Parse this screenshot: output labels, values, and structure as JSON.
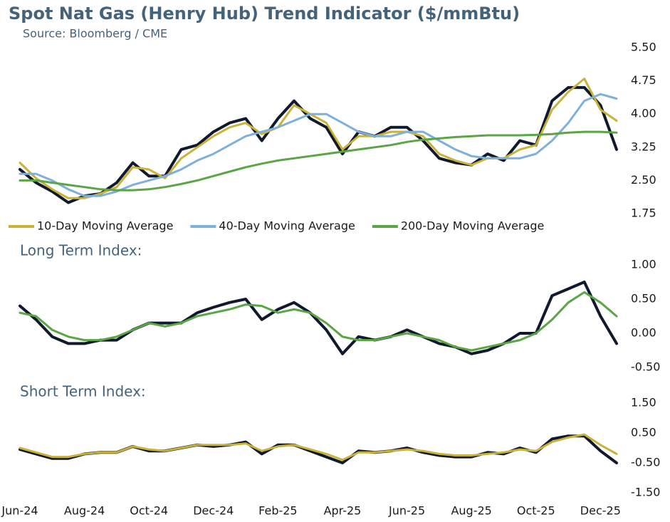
{
  "chart_data": [
    {
      "type": "line",
      "title": "Spot Nat Gas (Henry Hub) Trend Indicator ($/mmBtu)",
      "subtitle": "Source: Bloomberg / CME",
      "ylim": [
        1.75,
        5.5
      ],
      "yticks": [
        {
          "value": 1.75,
          "label": "1.75"
        },
        {
          "value": 2.5,
          "label": "2.50"
        },
        {
          "value": 3.25,
          "label": "3.25"
        },
        {
          "value": 4,
          "label": "4.00"
        },
        {
          "value": 4.75,
          "label": "4.75"
        },
        {
          "value": 5.5,
          "label": "5.50"
        }
      ],
      "legend": "bottom",
      "series": [
        {
          "color": "#111a2c",
          "values": [
            2.75,
            2.45,
            2.25,
            2.0,
            2.15,
            2.2,
            2.45,
            2.9,
            2.6,
            2.6,
            3.2,
            3.3,
            3.6,
            3.8,
            3.9,
            3.4,
            3.9,
            4.3,
            3.9,
            3.7,
            3.1,
            3.6,
            3.5,
            3.7,
            3.7,
            3.4,
            3.0,
            2.9,
            2.85,
            3.1,
            2.95,
            3.4,
            3.3,
            4.3,
            4.6,
            4.6,
            4.2,
            3.2
          ]
        },
        {
          "name": "10-Day Moving Average",
          "color": "#c8b23a",
          "values": [
            2.9,
            2.55,
            2.3,
            2.1,
            2.1,
            2.2,
            2.35,
            2.8,
            2.75,
            2.55,
            3.0,
            3.25,
            3.5,
            3.7,
            3.8,
            3.55,
            3.7,
            4.2,
            4.0,
            3.8,
            3.2,
            3.5,
            3.5,
            3.6,
            3.6,
            3.5,
            3.1,
            2.95,
            2.85,
            3.0,
            3.0,
            3.2,
            3.3,
            4.1,
            4.5,
            4.8,
            4.1,
            3.85
          ]
        },
        {
          "name": "40-Day Moving Average",
          "color": "#7fb0d9",
          "values": [
            2.65,
            2.65,
            2.5,
            2.3,
            2.15,
            2.15,
            2.25,
            2.4,
            2.5,
            2.6,
            2.75,
            2.95,
            3.1,
            3.3,
            3.5,
            3.6,
            3.7,
            3.85,
            4.0,
            4.0,
            3.8,
            3.6,
            3.5,
            3.5,
            3.6,
            3.6,
            3.4,
            3.2,
            3.05,
            3.0,
            3.0,
            3.0,
            3.1,
            3.4,
            3.8,
            4.3,
            4.45,
            4.35
          ]
        },
        {
          "name": "200-Day Moving Average",
          "color": "#5aa545",
          "values": [
            2.5,
            2.5,
            2.45,
            2.4,
            2.35,
            2.3,
            2.28,
            2.28,
            2.3,
            2.35,
            2.42,
            2.5,
            2.6,
            2.7,
            2.8,
            2.88,
            2.95,
            3.0,
            3.05,
            3.1,
            3.15,
            3.2,
            3.25,
            3.3,
            3.37,
            3.42,
            3.45,
            3.48,
            3.5,
            3.52,
            3.52,
            3.52,
            3.53,
            3.55,
            3.58,
            3.6,
            3.6,
            3.58
          ]
        }
      ]
    },
    {
      "type": "line",
      "title": "Long Term Index:",
      "ylim": [
        -0.5,
        1
      ],
      "yticks": [
        {
          "value": -0.5,
          "label": "-0.50"
        },
        {
          "value": 0,
          "label": "0.00"
        },
        {
          "value": 0.5,
          "label": "0.50"
        },
        {
          "value": 1,
          "label": "1.00"
        }
      ],
      "series": [
        {
          "color": "#111a2c",
          "values": [
            0.4,
            0.2,
            -0.05,
            -0.15,
            -0.15,
            -0.1,
            -0.1,
            0.05,
            0.15,
            0.15,
            0.15,
            0.3,
            0.38,
            0.45,
            0.5,
            0.2,
            0.35,
            0.45,
            0.3,
            0.05,
            -0.3,
            -0.05,
            -0.1,
            -0.05,
            0.05,
            -0.05,
            -0.15,
            -0.2,
            -0.3,
            -0.25,
            -0.15,
            0.0,
            0.0,
            0.55,
            0.65,
            0.75,
            0.25,
            -0.15
          ]
        },
        {
          "color": "#5aa545",
          "values": [
            0.3,
            0.25,
            0.05,
            -0.05,
            -0.1,
            -0.1,
            -0.05,
            0.05,
            0.15,
            0.1,
            0.15,
            0.25,
            0.3,
            0.35,
            0.42,
            0.4,
            0.3,
            0.35,
            0.3,
            0.15,
            -0.05,
            -0.1,
            -0.1,
            -0.05,
            0.0,
            -0.05,
            -0.1,
            -0.2,
            -0.25,
            -0.2,
            -0.15,
            -0.1,
            0.0,
            0.2,
            0.45,
            0.6,
            0.45,
            0.25
          ]
        }
      ]
    },
    {
      "type": "line",
      "title": "Short Term Index:",
      "ylim": [
        -1.5,
        1.5
      ],
      "yticks": [
        {
          "value": -1.5,
          "label": "-1.50"
        },
        {
          "value": -0.5,
          "label": "-0.50"
        },
        {
          "value": 0.5,
          "label": "0.50"
        },
        {
          "value": 1.5,
          "label": "1.50"
        }
      ],
      "categories": [
        "Jun-24",
        null,
        null,
        null,
        "Aug-24",
        null,
        null,
        null,
        "Oct-24",
        null,
        null,
        null,
        "Dec-24",
        null,
        null,
        null,
        "Feb-25",
        null,
        null,
        null,
        "Apr-25",
        null,
        null,
        null,
        "Jun-25",
        null,
        null,
        null,
        "Aug-25",
        null,
        null,
        null,
        "Oct-25",
        null,
        null,
        null,
        "Dec-25",
        null
      ],
      "series": [
        {
          "color": "#111a2c",
          "values": [
            -0.05,
            -0.2,
            -0.35,
            -0.35,
            -0.2,
            -0.15,
            -0.15,
            0.05,
            -0.1,
            -0.1,
            0.0,
            0.1,
            0.05,
            0.1,
            0.2,
            -0.2,
            0.1,
            0.1,
            -0.1,
            -0.3,
            -0.5,
            -0.1,
            -0.15,
            -0.1,
            0.0,
            -0.15,
            -0.25,
            -0.3,
            -0.3,
            -0.15,
            -0.2,
            0.0,
            -0.15,
            0.3,
            0.4,
            0.4,
            -0.1,
            -0.5
          ]
        },
        {
          "color": "#c8b23a",
          "values": [
            0.0,
            -0.15,
            -0.3,
            -0.3,
            -0.2,
            -0.15,
            -0.15,
            0.05,
            -0.05,
            -0.1,
            0.0,
            0.1,
            0.1,
            0.1,
            0.15,
            -0.1,
            0.05,
            0.1,
            -0.05,
            -0.2,
            -0.4,
            -0.15,
            -0.15,
            -0.1,
            -0.05,
            -0.1,
            -0.2,
            -0.25,
            -0.25,
            -0.2,
            -0.15,
            -0.05,
            -0.1,
            0.2,
            0.35,
            0.45,
            0.1,
            -0.2
          ]
        }
      ]
    }
  ]
}
